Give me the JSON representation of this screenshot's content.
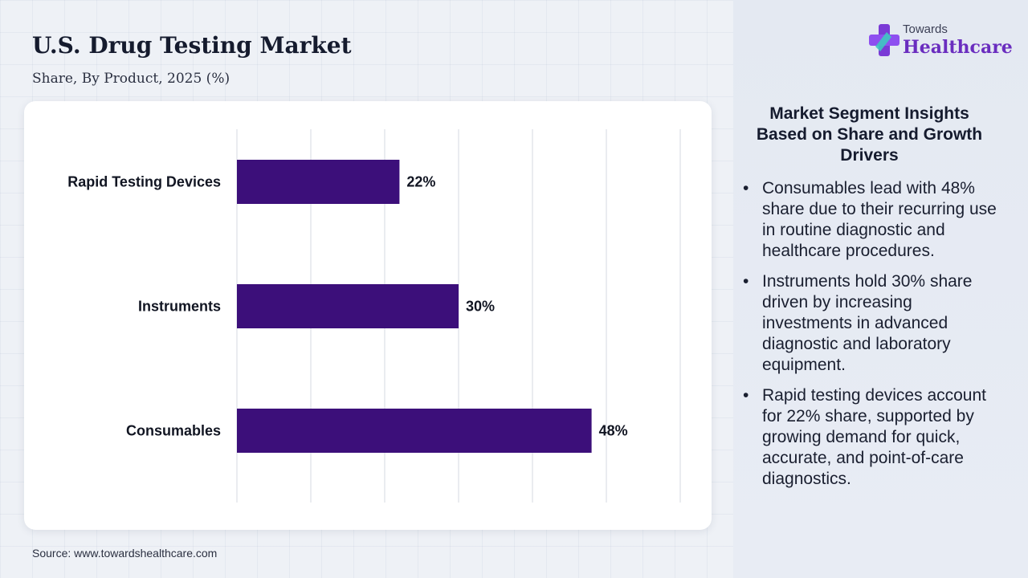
{
  "header": {
    "title": "U.S. Drug Testing Market",
    "subtitle": "Share, By Product, 2025 (%)"
  },
  "source": "Source: www.towardshealthcare.com",
  "logo": {
    "line1": "Towards",
    "line2": "Healthcare",
    "icon": "cross-plus-icon"
  },
  "insights": {
    "title": "Market Segment Insights Based on Share and Growth Drivers",
    "bullets": [
      "Consumables lead with 48% share due to their recurring use in routine diagnostic and healthcare procedures.",
      "Instruments hold 30% share driven by increasing investments in advanced diagnostic and laboratory equipment.",
      "Rapid testing devices account for 22% share, supported by growing demand for quick, accurate, and point-of-care diagnostics."
    ]
  },
  "colors": {
    "bar": "#3c0f7a",
    "logo_accent": "#6a2dbf"
  },
  "chart_data": {
    "type": "bar",
    "orientation": "horizontal",
    "categories": [
      "Rapid Testing Devices",
      "Instruments",
      "Consumables"
    ],
    "values": [
      22,
      30,
      48
    ],
    "value_labels": [
      "22%",
      "30%",
      "48%"
    ],
    "title": "U.S. Drug Testing Market",
    "subtitle": "Share, By Product, 2025 (%)",
    "xlim": [
      0,
      60
    ],
    "grid": true,
    "legend": "none"
  }
}
